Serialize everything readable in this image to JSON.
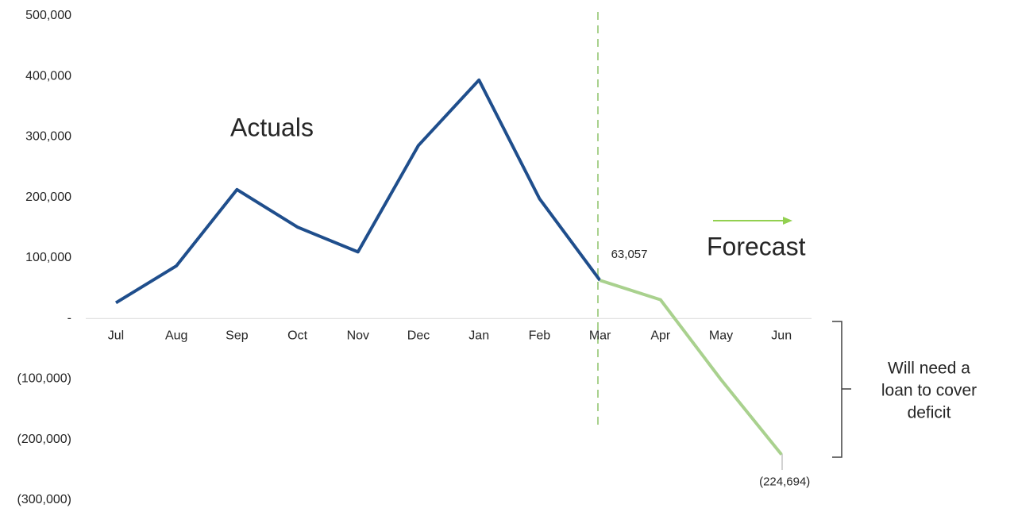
{
  "chart_data": {
    "type": "line",
    "categories": [
      "Jul",
      "Aug",
      "Sep",
      "Oct",
      "Nov",
      "Dec",
      "Jan",
      "Feb",
      "Mar",
      "Apr",
      "May",
      "Jun"
    ],
    "series": [
      {
        "name": "Actuals",
        "color": "#1f4e8c",
        "values": [
          26000,
          87000,
          213000,
          151000,
          110000,
          286000,
          394000,
          198000,
          63057,
          null,
          null,
          null
        ]
      },
      {
        "name": "Forecast",
        "color": "#a9d18e",
        "values": [
          null,
          null,
          null,
          null,
          null,
          null,
          null,
          null,
          63057,
          31000,
          -101000,
          -224694
        ],
        "value_labels": [
          null,
          null,
          null,
          null,
          null,
          null,
          null,
          null,
          "63,057",
          null,
          null,
          "(224,694)"
        ]
      }
    ],
    "ylim": [
      -300000,
      500000
    ],
    "yticks": [
      {
        "value": 500000,
        "label": "500,000"
      },
      {
        "value": 400000,
        "label": "400,000"
      },
      {
        "value": 300000,
        "label": "300,000"
      },
      {
        "value": 200000,
        "label": "200,000"
      },
      {
        "value": 100000,
        "label": "100,000"
      },
      {
        "value": 0,
        "label": "-"
      },
      {
        "value": -100000,
        "label": "(100,000)"
      },
      {
        "value": -200000,
        "label": "(200,000)"
      },
      {
        "value": -300000,
        "label": "(300,000)"
      }
    ],
    "annotation": [
      "Will need a",
      "loan to cover",
      "deficit"
    ]
  }
}
